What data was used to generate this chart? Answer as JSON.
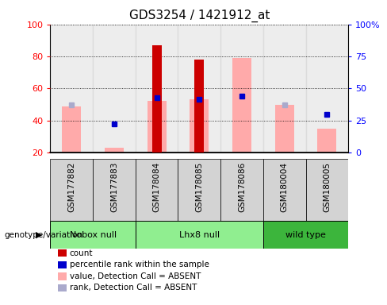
{
  "title": "GDS3254 / 1421912_at",
  "samples": [
    "GSM177882",
    "GSM177883",
    "GSM178084",
    "GSM178085",
    "GSM178086",
    "GSM180004",
    "GSM180005"
  ],
  "ylim": [
    20,
    100
  ],
  "yticks_left": [
    20,
    40,
    60,
    80,
    100
  ],
  "ytick_labels_left": [
    "20",
    "40",
    "60",
    "80",
    "100"
  ],
  "yticks_right_pct": [
    0,
    25,
    50,
    75,
    100
  ],
  "ytick_labels_right": [
    "0",
    "25",
    "50",
    "75",
    "100%"
  ],
  "red_bars": [
    null,
    null,
    87,
    78,
    null,
    null,
    null
  ],
  "pink_bars": [
    49,
    23,
    52,
    53,
    79,
    50,
    35
  ],
  "blue_squares": [
    null,
    38,
    54,
    53,
    55,
    null,
    44
  ],
  "light_blue_squares": [
    50,
    null,
    null,
    null,
    null,
    50,
    null
  ],
  "groups_info": [
    {
      "label": "Nobox null",
      "indices": [
        0,
        1
      ],
      "color": "#90ee90"
    },
    {
      "label": "Lhx8 null",
      "indices": [
        2,
        3,
        4
      ],
      "color": "#90ee90"
    },
    {
      "label": "wild type",
      "indices": [
        5,
        6
      ],
      "color": "#3cb53c"
    }
  ],
  "red_bar_color": "#cc0000",
  "pink_bar_color": "#ffaaaa",
  "blue_sq_color": "#0000cc",
  "light_blue_sq_color": "#aaaacc",
  "col_bg_color": "#d3d3d3",
  "axis_left_color": "red",
  "axis_right_color": "blue",
  "title_fontsize": 11,
  "tick_fontsize": 8,
  "legend_fontsize": 7.5,
  "pink_bar_width": 0.45,
  "red_bar_width": 0.22
}
